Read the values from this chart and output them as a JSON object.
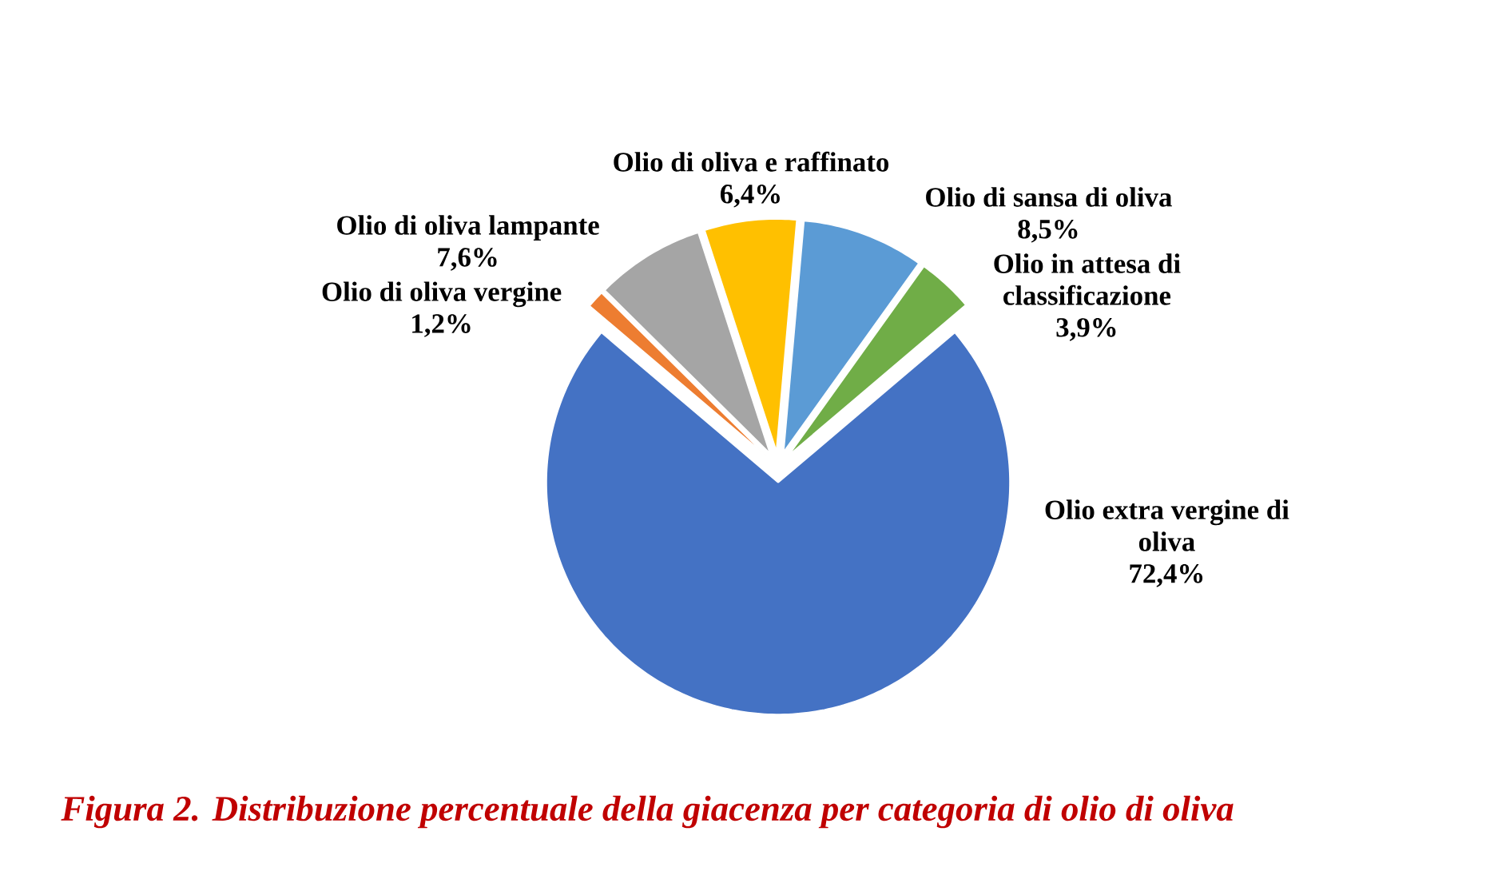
{
  "chart_data": {
    "type": "pie",
    "title": "Figura 2. Distribuzione percentuale della giacenza per categoria di olio di oliva",
    "categories": [
      "Olio extra vergine di oliva",
      "Olio di oliva vergine",
      "Olio di oliva lampante",
      "Olio di oliva e raffinato",
      "Olio di sansa di oliva",
      "Olio in attesa di classificazione"
    ],
    "values": [
      72.4,
      1.2,
      7.6,
      6.4,
      8.5,
      3.9
    ],
    "colors": [
      "#4472c4",
      "#ed7d31",
      "#a5a5a5",
      "#ffc000",
      "#5b9bd5",
      "#70ad47"
    ],
    "value_labels": [
      "72,4%",
      "1,2%",
      "7,6%",
      "6,4%",
      "8,5%",
      "3,9%"
    ]
  }
}
